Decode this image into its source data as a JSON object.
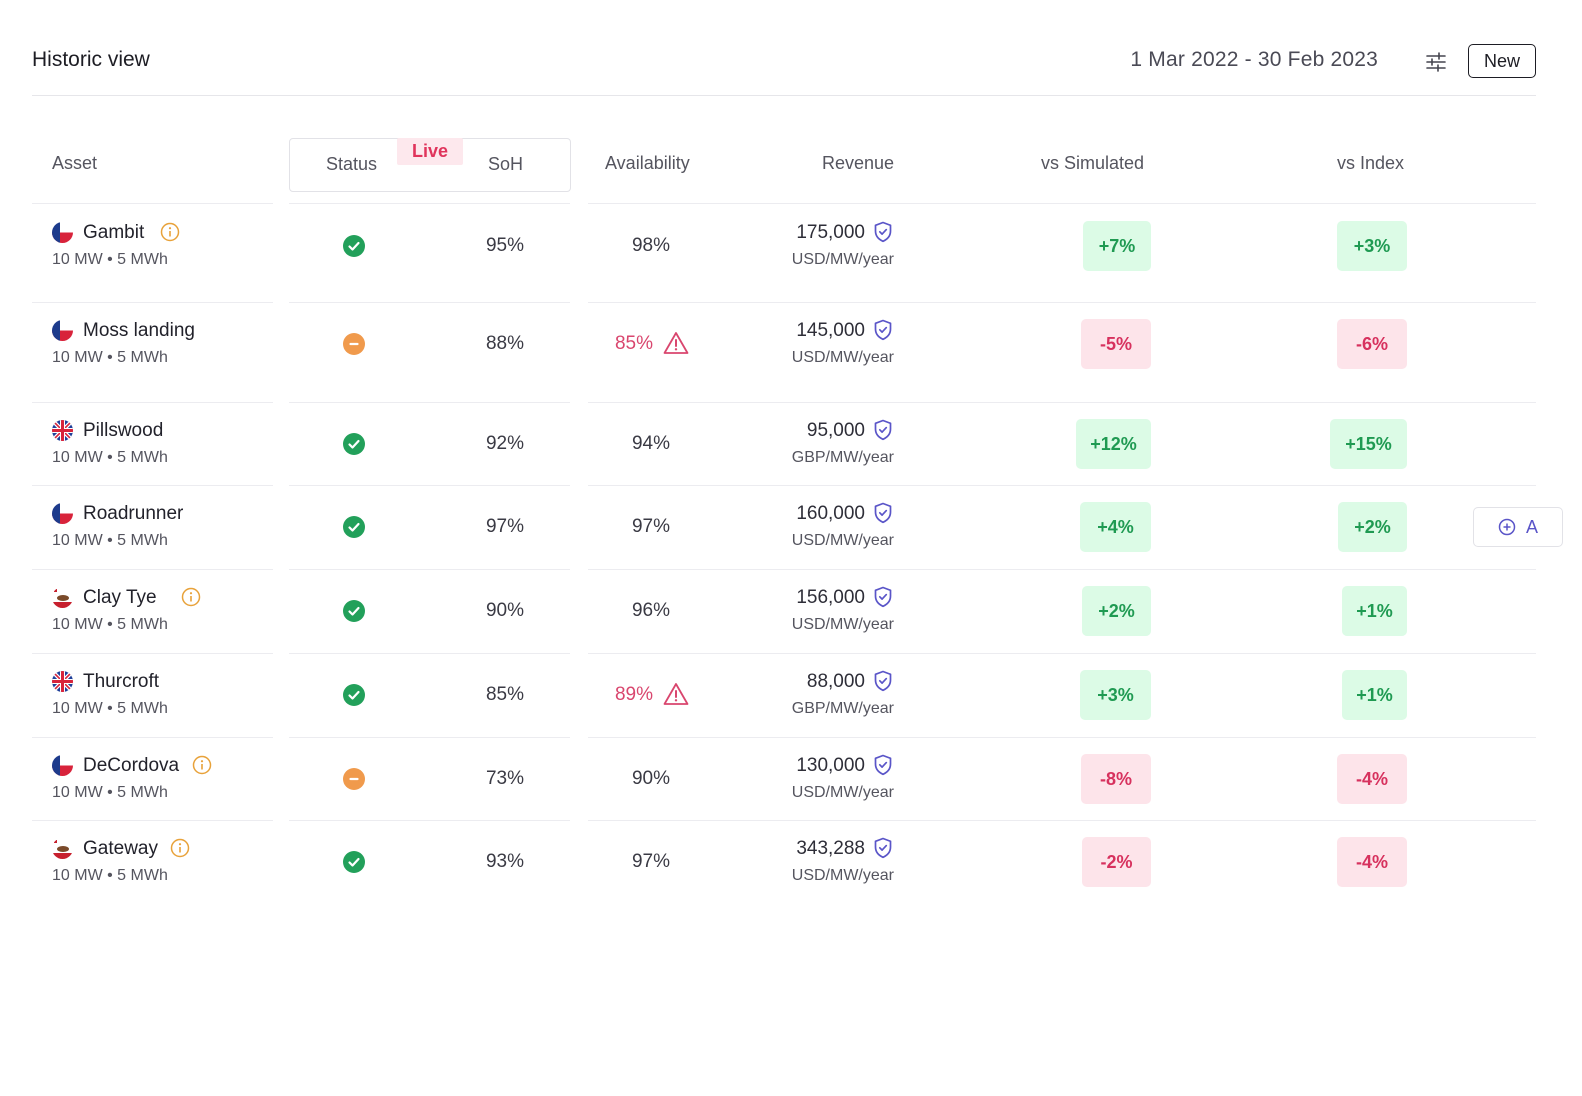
{
  "header": {
    "title": "Historic view",
    "date_range": "1 Mar 2022 - 30 Feb 2023",
    "new_button": "New"
  },
  "columns": {
    "asset": "Asset",
    "status": "Status",
    "live_tag": "Live",
    "soh": "SoH",
    "availability": "Availability",
    "revenue": "Revenue",
    "vs_simulated": "vs Simulated",
    "vs_index": "vs Index"
  },
  "rows": [
    {
      "name": "Gambit",
      "meta": "10 MW • 5 MWh",
      "flag": "texas",
      "info": true,
      "status": "ok",
      "soh": "95%",
      "availability": "98%",
      "availability_alert": false,
      "revenue": "175,000",
      "unit": "USD/MW/year",
      "vs_simulated": "+7%",
      "vs_index": "+3%"
    },
    {
      "name": "Moss landing",
      "meta": "10 MW • 5 MWh",
      "flag": "texas",
      "info": false,
      "status": "warn",
      "soh": "88%",
      "availability": "85%",
      "availability_alert": true,
      "revenue": "145,000",
      "unit": "USD/MW/year",
      "vs_simulated": "-5%",
      "vs_index": "-6%"
    },
    {
      "name": "Pillswood",
      "meta": "10 MW • 5 MWh",
      "flag": "uk",
      "info": false,
      "status": "ok",
      "soh": "92%",
      "availability": "94%",
      "availability_alert": false,
      "revenue": "95,000",
      "unit": "GBP/MW/year",
      "vs_simulated": "+12%",
      "vs_index": "+15%"
    },
    {
      "name": "Roadrunner",
      "meta": "10 MW • 5 MWh",
      "flag": "texas",
      "info": false,
      "status": "ok",
      "soh": "97%",
      "availability": "97%",
      "availability_alert": false,
      "revenue": "160,000",
      "unit": "USD/MW/year",
      "vs_simulated": "+4%",
      "vs_index": "+2%"
    },
    {
      "name": "Clay Tye",
      "meta": "10 MW • 5 MWh",
      "flag": "california",
      "info": true,
      "status": "ok",
      "soh": "90%",
      "availability": "96%",
      "availability_alert": false,
      "revenue": "156,000",
      "unit": "USD/MW/year",
      "vs_simulated": "+2%",
      "vs_index": "+1%"
    },
    {
      "name": "Thurcroft",
      "meta": "10 MW • 5 MWh",
      "flag": "uk",
      "info": false,
      "status": "ok",
      "soh": "85%",
      "availability": "89%",
      "availability_alert": true,
      "revenue": "88,000",
      "unit": "GBP/MW/year",
      "vs_simulated": "+3%",
      "vs_index": "+1%"
    },
    {
      "name": "DeCordova",
      "meta": "10 MW • 5 MWh",
      "flag": "texas",
      "info": true,
      "status": "warn",
      "soh": "73%",
      "availability": "90%",
      "availability_alert": false,
      "revenue": "130,000",
      "unit": "USD/MW/year",
      "vs_simulated": "-8%",
      "vs_index": "-4%"
    },
    {
      "name": "Gateway",
      "meta": "10 MW • 5 MWh",
      "flag": "california",
      "info": true,
      "status": "ok",
      "soh": "93%",
      "availability": "97%",
      "availability_alert": false,
      "revenue": "343,288",
      "unit": "USD/MW/year",
      "vs_simulated": "-2%",
      "vs_index": "-4%"
    }
  ],
  "add_chip_label": "A",
  "colors": {
    "positive_bg": "#dcfbe6",
    "positive_text": "#1f9a52",
    "negative_bg": "#fde4ea",
    "negative_text": "#d7315e",
    "status_ok": "#22a05a",
    "status_warn": "#f09a4c",
    "accent": "#5a55c8",
    "info": "#e8a23a"
  }
}
